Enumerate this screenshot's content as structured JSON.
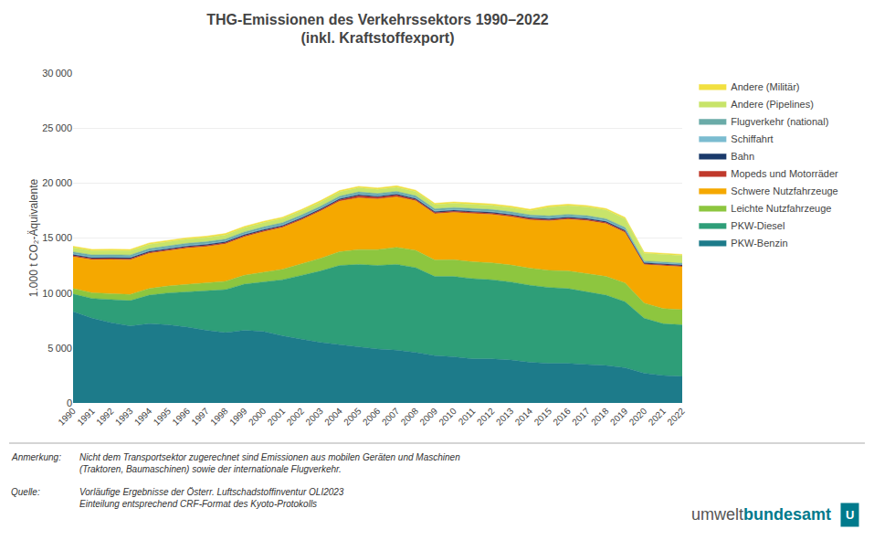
{
  "chart_data": {
    "type": "area",
    "stacked": true,
    "title": "THG-Emissionen des Verkehrssektors 1990–2022\n(inkl. Kraftstoffexport)",
    "ylabel": "1.000 t CO₂-Äquivalente",
    "x": [
      1990,
      1991,
      1992,
      1993,
      1994,
      1995,
      1996,
      1997,
      1998,
      1999,
      2000,
      2001,
      2002,
      2003,
      2004,
      2005,
      2006,
      2007,
      2008,
      2009,
      2010,
      2011,
      2012,
      2013,
      2014,
      2015,
      2016,
      2017,
      2018,
      2019,
      2020,
      2021,
      2022
    ],
    "series": [
      {
        "name": "PKW-Benzin",
        "color": "#1D7B8A",
        "values": [
          8300,
          7700,
          7300,
          7000,
          7200,
          7100,
          6900,
          6600,
          6400,
          6600,
          6500,
          6100,
          5800,
          5500,
          5300,
          5100,
          4900,
          4800,
          4600,
          4300,
          4200,
          4000,
          4000,
          3900,
          3700,
          3600,
          3600,
          3500,
          3400,
          3200,
          2700,
          2500,
          2400
        ]
      },
      {
        "name": "PKW-Diesel",
        "color": "#2E9E78",
        "values": [
          1600,
          1800,
          2100,
          2300,
          2600,
          2900,
          3200,
          3600,
          3900,
          4200,
          4500,
          5100,
          5800,
          6500,
          7200,
          7500,
          7600,
          7800,
          7700,
          7200,
          7300,
          7300,
          7200,
          7100,
          7000,
          6900,
          6800,
          6600,
          6400,
          6000,
          5000,
          4700,
          4700
        ]
      },
      {
        "name": "Leichte Nutzfahrzeuge",
        "color": "#8DC63F",
        "values": [
          500,
          520,
          540,
          560,
          600,
          640,
          680,
          720,
          760,
          810,
          870,
          950,
          1050,
          1150,
          1250,
          1350,
          1450,
          1550,
          1580,
          1500,
          1520,
          1530,
          1540,
          1540,
          1550,
          1560,
          1600,
          1680,
          1700,
          1700,
          1380,
          1380,
          1380
        ]
      },
      {
        "name": "Schwere Nutzfahrzeuge",
        "color": "#F5A800",
        "values": [
          2900,
          3000,
          3100,
          3150,
          3200,
          3200,
          3300,
          3300,
          3400,
          3500,
          3700,
          3800,
          4000,
          4300,
          4600,
          4700,
          4600,
          4600,
          4500,
          4200,
          4300,
          4400,
          4400,
          4400,
          4400,
          4500,
          4700,
          4800,
          4800,
          4600,
          3500,
          3900,
          3900
        ]
      },
      {
        "name": "Mopeds und Motorräder",
        "color": "#C0392B",
        "values": [
          100,
          100,
          100,
          100,
          100,
          100,
          100,
          100,
          100,
          100,
          100,
          100,
          100,
          100,
          120,
          200,
          160,
          150,
          120,
          110,
          110,
          110,
          110,
          110,
          110,
          110,
          110,
          110,
          110,
          110,
          80,
          80,
          80
        ]
      },
      {
        "name": "Bahn",
        "color": "#1A3A6B",
        "values": [
          100,
          100,
          100,
          100,
          100,
          100,
          100,
          100,
          100,
          100,
          100,
          100,
          100,
          100,
          100,
          100,
          100,
          100,
          100,
          100,
          100,
          100,
          100,
          100,
          100,
          100,
          100,
          100,
          100,
          100,
          100,
          100,
          100
        ]
      },
      {
        "name": "Schiffahrt",
        "color": "#7BBCD0",
        "values": [
          60,
          60,
          60,
          60,
          60,
          60,
          60,
          60,
          60,
          60,
          60,
          60,
          60,
          60,
          60,
          60,
          60,
          60,
          60,
          60,
          60,
          60,
          60,
          60,
          60,
          60,
          60,
          60,
          60,
          60,
          60,
          60,
          60
        ]
      },
      {
        "name": "Flugverkehr (national)",
        "color": "#6AABA8",
        "values": [
          180,
          180,
          180,
          180,
          180,
          180,
          180,
          180,
          180,
          180,
          180,
          180,
          180,
          180,
          180,
          180,
          180,
          180,
          180,
          180,
          180,
          180,
          180,
          180,
          180,
          180,
          180,
          180,
          180,
          180,
          90,
          90,
          90
        ]
      },
      {
        "name": "Andere (Pipelines)",
        "color": "#C8E46A",
        "values": [
          380,
          380,
          380,
          380,
          380,
          380,
          380,
          380,
          380,
          380,
          380,
          380,
          380,
          380,
          380,
          380,
          380,
          380,
          380,
          380,
          380,
          380,
          380,
          380,
          380,
          800,
          800,
          800,
          800,
          800,
          700,
          700,
          700
        ]
      },
      {
        "name": "Andere (Militär)",
        "color": "#F2E040",
        "values": [
          130,
          130,
          130,
          130,
          130,
          130,
          130,
          130,
          130,
          130,
          130,
          130,
          130,
          130,
          130,
          130,
          130,
          130,
          130,
          130,
          130,
          130,
          130,
          130,
          130,
          130,
          130,
          130,
          130,
          130,
          100,
          100,
          100
        ]
      }
    ],
    "xlim": [
      1990,
      2022
    ],
    "xticks": [
      1990,
      1991,
      1992,
      1993,
      1994,
      1995,
      1996,
      1997,
      1998,
      1999,
      2000,
      2001,
      2002,
      2003,
      2004,
      2005,
      2006,
      2007,
      2008,
      2009,
      2010,
      2011,
      2012,
      2013,
      2014,
      2015,
      2016,
      2017,
      2018,
      2019,
      2020,
      2021,
      2022
    ],
    "ylim": [
      0,
      30000
    ],
    "yticks": [
      0,
      {
        "value": 5000,
        "label": "5 000"
      },
      {
        "value": 10000,
        "label": "10 000"
      },
      {
        "value": 15000,
        "label": "15 000"
      },
      {
        "value": 20000,
        "label": "20 000"
      },
      {
        "value": 25000,
        "label": "25 000"
      },
      {
        "value": 30000,
        "label": "30 000"
      }
    ],
    "grid": true,
    "legend": "right",
    "annotations": [
      "Anmerkung:",
      "Nicht dem Transportsektor zugerechnet sind Emissionen aus mobilen Geräten und Maschinen\n(Traktoren, Baumaschinen) sowie der internationale Flugverkehr.",
      "Quelle:",
      "Vorläufige Ergebnisse der Österr. Luftschadstoffinventur OLI2023\nEinteilung entsprechend CRF-Format des Kyoto-Protokolls",
      "umwelt",
      "bundesamt",
      "U"
    ]
  }
}
